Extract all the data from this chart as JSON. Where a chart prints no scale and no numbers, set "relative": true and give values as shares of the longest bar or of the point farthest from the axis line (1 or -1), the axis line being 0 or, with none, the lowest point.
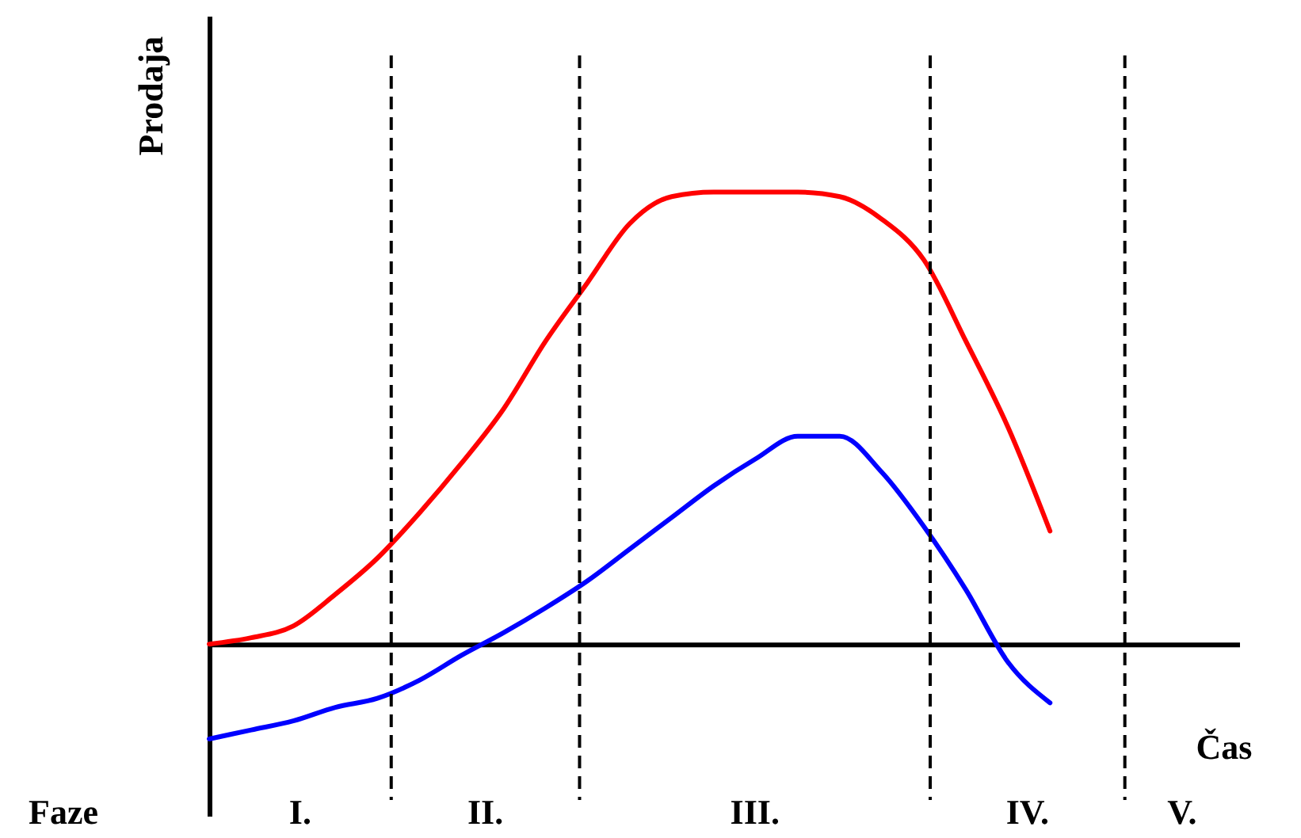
{
  "chart_data": {
    "type": "line",
    "relative": true,
    "xlabel": "Čas",
    "ylabel": "Prodaja",
    "categories": [
      null,
      null,
      null,
      null,
      null,
      null,
      null,
      null,
      null,
      null,
      null,
      null,
      null,
      null,
      null,
      null,
      null,
      null,
      null,
      null,
      null,
      null,
      null,
      null,
      null
    ],
    "series": [
      {
        "color": "#ff0000",
        "values": [
          0,
          0.014,
          0.04,
          0.11,
          0.19,
          0.29,
          0.4,
          0.52,
          0.67,
          0.8,
          0.93,
          0.99,
          1,
          1,
          1,
          0.99,
          0.94,
          0.85,
          0.67,
          0.48,
          0.25,
          null,
          null,
          null,
          null
        ]
      },
      {
        "color": "#0000ff",
        "values": [
          -0.21,
          -0.19,
          -0.17,
          -0.14,
          -0.12,
          -0.08,
          -0.025,
          0.025,
          0.08,
          0.14,
          0.21,
          0.28,
          0.35,
          0.41,
          0.46,
          0.46,
          0.38,
          0.26,
          0.12,
          -0.04,
          -0.13,
          null,
          null,
          null,
          null
        ]
      }
    ],
    "annotations": [
      "Faze",
      "I.",
      "II.",
      "III.",
      "IV.",
      "V."
    ],
    "line_style": "solid",
    "marker": "none",
    "grid": false
  }
}
